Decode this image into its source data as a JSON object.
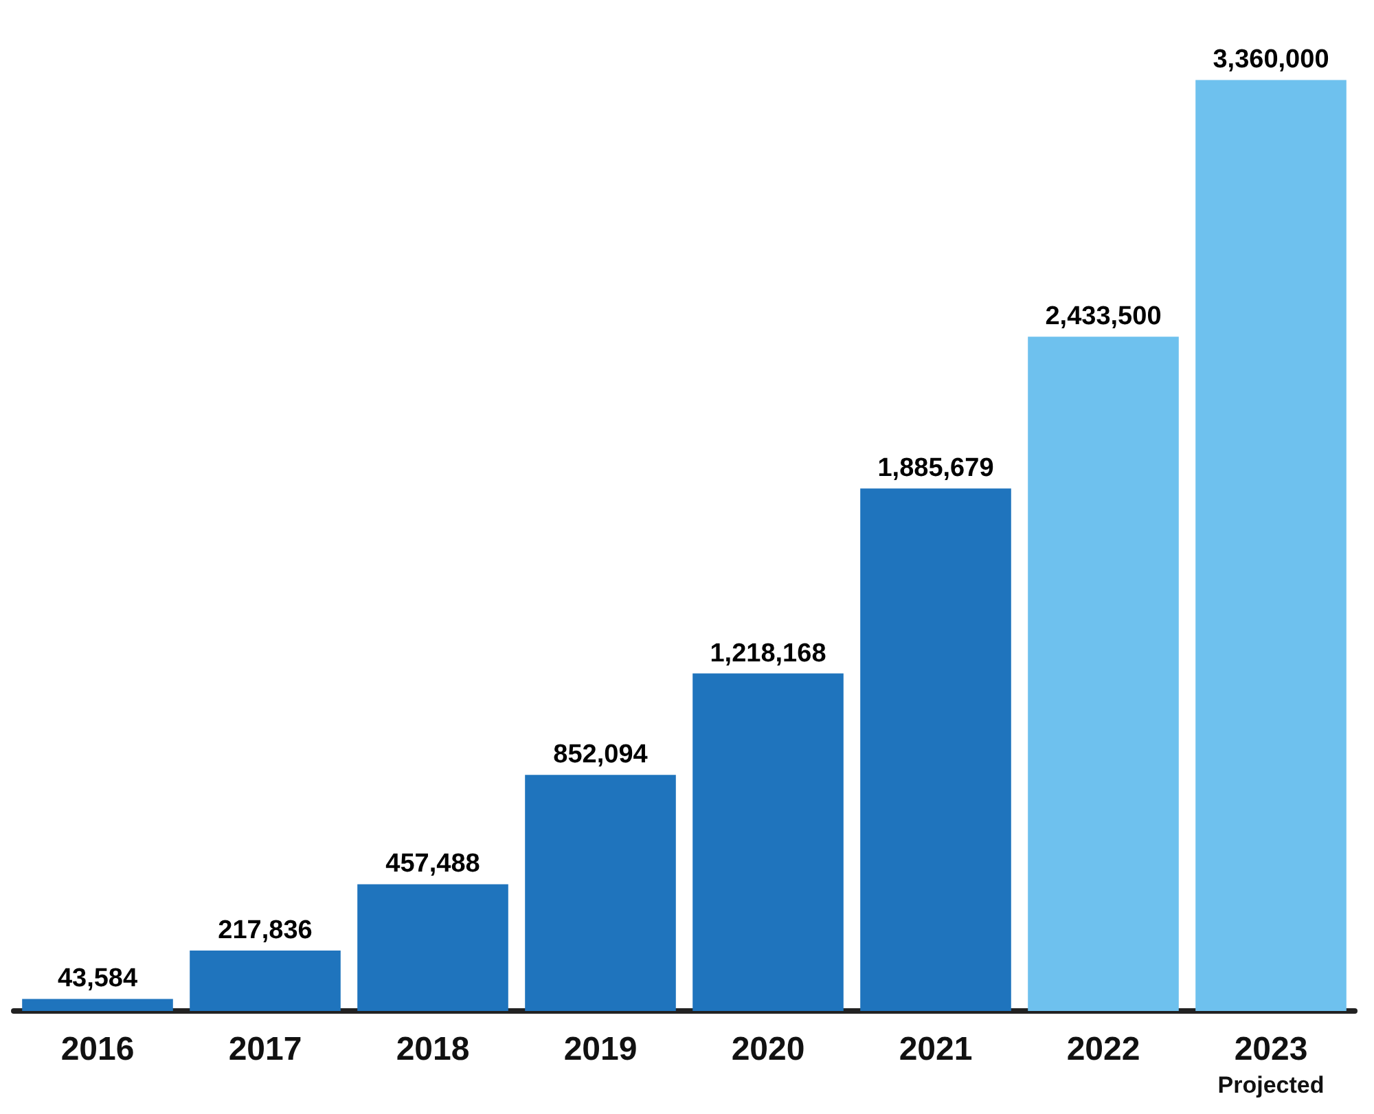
{
  "chart_data": {
    "type": "bar",
    "categories": [
      "2016",
      "2017",
      "2018",
      "2019",
      "2020",
      "2021",
      "2022",
      "2023"
    ],
    "values": [
      43584,
      217836,
      457488,
      852094,
      1218168,
      1885679,
      2433500,
      3360000
    ],
    "value_labels": [
      "43,584",
      "217,836",
      "457,488",
      "852,094",
      "1,218,168",
      "1,885,679",
      "2,433,500",
      "3,360,000"
    ],
    "colors": [
      "#1f74bd",
      "#1f74bd",
      "#1f74bd",
      "#1f74bd",
      "#1f74bd",
      "#1f74bd",
      "#6ec1ee",
      "#6ec1ee"
    ],
    "annotations": [
      "Projected"
    ]
  }
}
